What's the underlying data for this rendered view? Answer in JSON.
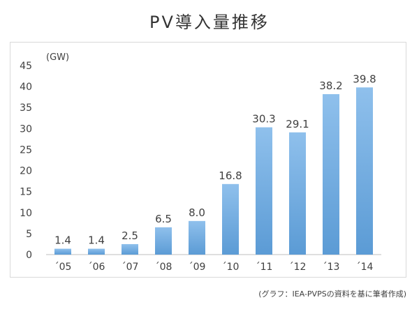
{
  "title": "PV導入量推移",
  "source": "(グラフ：IEA-PVPSの資料を基に筆者作成)",
  "chart_data": {
    "type": "bar",
    "title": "PV導入量推移",
    "ylabel": "(GW)",
    "xlabel": "",
    "categories": [
      "´05",
      "´06",
      "´07",
      "´08",
      "´09",
      "´10",
      "´11",
      "´12",
      "´13",
      "´14"
    ],
    "values": [
      1.4,
      1.4,
      2.5,
      6.5,
      8.0,
      16.8,
      30.3,
      29.1,
      38.2,
      39.8
    ],
    "value_labels": [
      "1.4",
      "1.4",
      "2.5",
      "6.5",
      "8.0",
      "16.8",
      "30.3",
      "29.1",
      "38.2",
      "39.8"
    ],
    "ylim": [
      0,
      45
    ],
    "yticks": [
      0,
      5,
      10,
      15,
      20,
      25,
      30,
      35,
      40,
      45
    ],
    "grid": false,
    "legend": "none",
    "colors": {
      "bar_top": "#8fc0ec",
      "bar_bottom": "#5b9bd5",
      "text": "#404040",
      "axis": "#bfbfbf"
    }
  }
}
